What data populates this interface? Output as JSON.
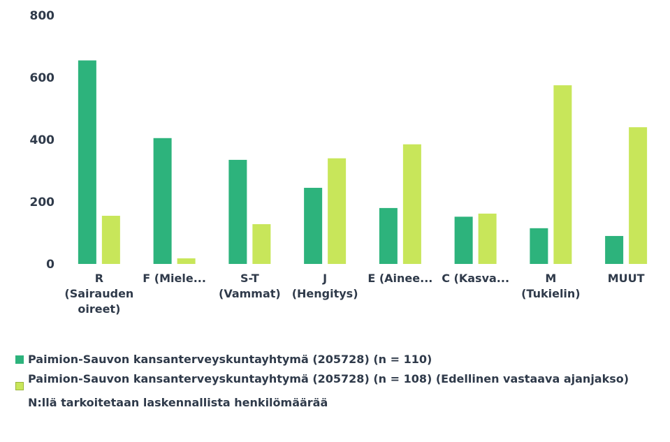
{
  "chart_data": {
    "type": "bar",
    "categories": [
      "R (Sairauden oireet)",
      "F (Miele...",
      "S-T (Vammat)",
      "J (Hengitys)",
      "E (Ainee...",
      "C (Kasva...",
      "M (Tukielin)",
      "MUUT"
    ],
    "category_lines": [
      [
        "R",
        "(Sairauden",
        "oireet)"
      ],
      [
        "F (Miele..."
      ],
      [
        "S-T",
        "(Vammat)"
      ],
      [
        "J",
        "(Hengitys)"
      ],
      [
        "E (Ainee..."
      ],
      [
        "C (Kasva..."
      ],
      [
        "M",
        "(Tukielin)"
      ],
      [
        "MUUT"
      ]
    ],
    "series": [
      {
        "name": "Paimion-Sauvon kansanterveyskuntayhtymä (205728) (n = 110)",
        "color": "#2db37c",
        "values": [
          655,
          405,
          335,
          245,
          180,
          152,
          115,
          90
        ]
      },
      {
        "name": "Paimion-Sauvon kansanterveyskuntayhtymä (205728) (n = 108) (Edellinen vastaava ajanjakso)",
        "color": "#c8e65a",
        "values": [
          155,
          18,
          128,
          340,
          385,
          162,
          575,
          440
        ]
      }
    ],
    "ylim": [
      0,
      800
    ],
    "yticks": [
      0,
      200,
      400,
      600,
      800
    ],
    "grid": false,
    "legend_position": "bottom-left"
  },
  "note": "N:llä tarkoitetaan laskennallista henkilömäärää"
}
